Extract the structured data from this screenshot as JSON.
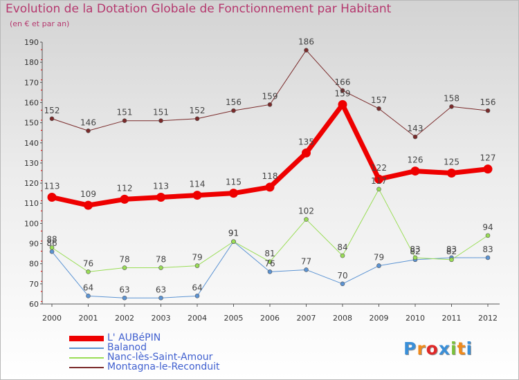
{
  "chart_data": {
    "type": "line",
    "title": "Evolution de la Dotation Globale de Fonctionnement par Habitant",
    "subtitle": "(en € et par an)",
    "xlabel": "",
    "ylabel": "",
    "ylim": [
      60,
      190
    ],
    "yticks": [
      60,
      70,
      80,
      90,
      100,
      110,
      120,
      130,
      140,
      150,
      160,
      170,
      180,
      190
    ],
    "categories": [
      "2000",
      "2001",
      "2002",
      "2003",
      "2004",
      "2005",
      "2006",
      "2007",
      "2008",
      "2009",
      "2010",
      "2011",
      "2012"
    ],
    "grid": false,
    "legend_position": "bottom-left",
    "series": [
      {
        "name": "L' AUBéPIN",
        "color": "#ee0000",
        "emphasis": true,
        "values": [
          113,
          109,
          112,
          113,
          114,
          115,
          118,
          135,
          159,
          122,
          126,
          125,
          127
        ]
      },
      {
        "name": "Balanod",
        "color": "#5b93d3",
        "emphasis": false,
        "values": [
          86,
          64,
          63,
          63,
          64,
          91,
          76,
          77,
          70,
          79,
          82,
          83,
          83
        ]
      },
      {
        "name": "Nanc-lès-Saint-Amour",
        "color": "#99dd55",
        "emphasis": false,
        "values": [
          88,
          76,
          78,
          78,
          79,
          91,
          81,
          102,
          84,
          117,
          83,
          82,
          94
        ]
      },
      {
        "name": "Montagna-le-Reconduit",
        "color": "#7a2a2a",
        "emphasis": false,
        "values": [
          152,
          146,
          151,
          151,
          152,
          156,
          159,
          186,
          166,
          157,
          143,
          158,
          156
        ]
      }
    ]
  },
  "logo": {
    "letters": [
      "P",
      "r",
      "o",
      "x",
      "i",
      "t",
      "i"
    ],
    "colors": [
      "#3a8fd8",
      "#f08a1c",
      "#e02828",
      "#3a8fd8",
      "#7ac13a",
      "#f08a1c",
      "#3a8fd8"
    ]
  }
}
